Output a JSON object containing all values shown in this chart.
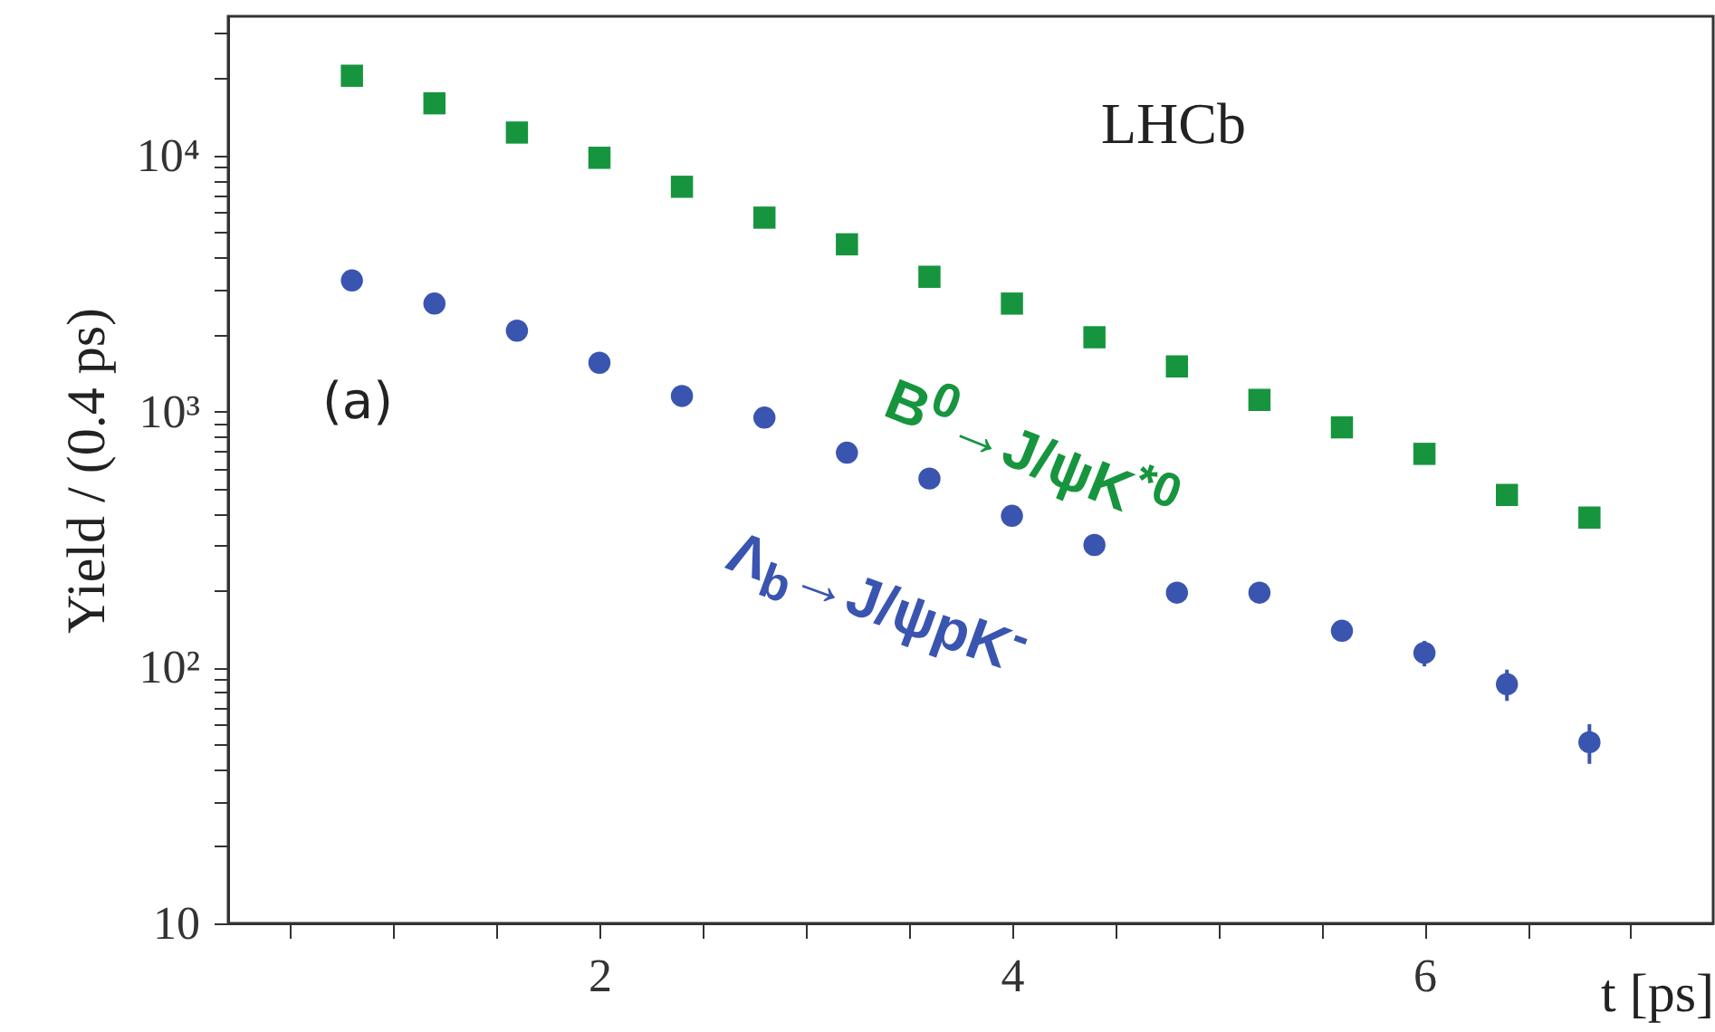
{
  "chart_data": {
    "type": "scatter",
    "xlabel": "t [ps]",
    "ylabel": "Yield / (0.4 ps)",
    "x": [
      0.8,
      1.2,
      1.6,
      2.0,
      2.4,
      2.8,
      3.2,
      3.6,
      4.0,
      4.4,
      4.8,
      5.2,
      5.6,
      6.0,
      6.4,
      6.8
    ],
    "series": [
      {
        "name": "B$^{0}$→J/ψK$^{*0}$",
        "color": "#16953e",
        "marker": "square",
        "values": [
          20500,
          16000,
          12300,
          9800,
          7550,
          5720,
          4500,
          3360,
          2640,
          1950,
          1500,
          1110,
          867,
          683,
          472,
          385
        ]
      },
      {
        "name": "Λ$_{b}$→J/ψpK$^{-}$",
        "color": "#3a55b0",
        "marker": "circle",
        "values": [
          3250,
          2640,
          2070,
          1550,
          1150,
          946,
          690,
          547,
          391,
          301,
          196,
          196,
          139,
          114,
          86,
          51
        ],
        "errors": [
          null,
          null,
          null,
          null,
          null,
          null,
          null,
          null,
          null,
          null,
          null,
          null,
          8,
          13,
          12,
          9
        ]
      }
    ],
    "log": "y",
    "xlim": [
      0.2,
      7.4
    ],
    "xticks": [
      {
        "value": 0.5,
        "label": null
      },
      {
        "value": 1,
        "label": null
      },
      {
        "value": 1.5,
        "label": null
      },
      2,
      {
        "value": 2.5,
        "label": null
      },
      {
        "value": 3,
        "label": null
      },
      {
        "value": 3.5,
        "label": null
      },
      4,
      {
        "value": 4.5,
        "label": null
      },
      {
        "value": 5,
        "label": null
      },
      {
        "value": 5.5,
        "label": null
      },
      6,
      {
        "value": 6.5,
        "label": null
      },
      {
        "value": 7,
        "label": null
      }
    ],
    "ylim": [
      10,
      35000
    ],
    "yticks": [
      10,
      {
        "value": 20,
        "label": null
      },
      {
        "value": 30,
        "label": null
      },
      {
        "value": 40,
        "label": null
      },
      {
        "value": 50,
        "label": null
      },
      {
        "value": 60,
        "label": null
      },
      {
        "value": 70,
        "label": null
      },
      {
        "value": 80,
        "label": null
      },
      {
        "value": 90,
        "label": null
      },
      {
        "value": 100,
        "label": "10²"
      },
      {
        "value": 200,
        "label": null
      },
      {
        "value": 300,
        "label": null
      },
      {
        "value": 400,
        "label": null
      },
      {
        "value": 500,
        "label": null
      },
      {
        "value": 600,
        "label": null
      },
      {
        "value": 700,
        "label": null
      },
      {
        "value": 800,
        "label": null
      },
      {
        "value": 900,
        "label": null
      },
      {
        "value": 1000,
        "label": "10³"
      },
      {
        "value": 2000,
        "label": null
      },
      {
        "value": 3000,
        "label": null
      },
      {
        "value": 4000,
        "label": null
      },
      {
        "value": 5000,
        "label": null
      },
      {
        "value": 6000,
        "label": null
      },
      {
        "value": 7000,
        "label": null
      },
      {
        "value": 8000,
        "label": null
      },
      {
        "value": 9000,
        "label": null
      },
      {
        "value": 10000,
        "label": "10⁴"
      },
      {
        "value": 20000,
        "label": null
      },
      {
        "value": 30000,
        "label": null
      }
    ],
    "annotations": [
      "LHCb",
      "(a)"
    ]
  }
}
